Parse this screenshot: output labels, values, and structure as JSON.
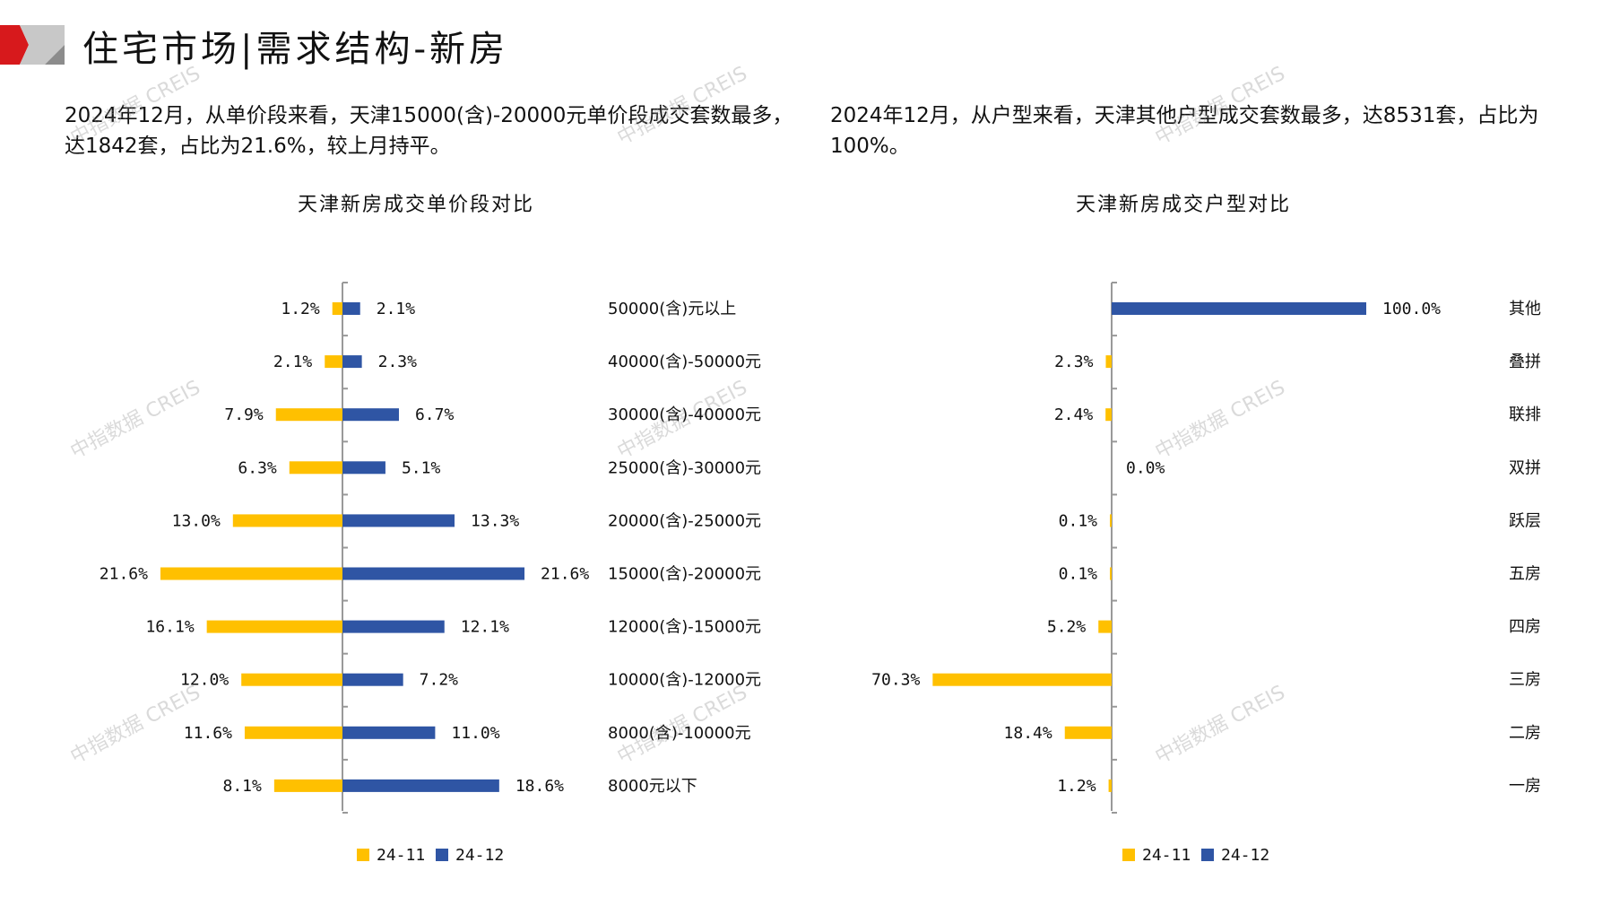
{
  "header": {
    "title": "住宅市场|需求结构-新房"
  },
  "left_text": "2024年12月，从单价段来看，天津15000(含)-20000元单价段成交套数最多，达1842套，占比为21.6%，较上月持平。",
  "right_text": "2024年12月，从户型来看，天津其他户型成交套数最多，达8531套，占比为100%。",
  "watermark": "中指数据 CREIS",
  "colors": {
    "prev": "#FFC000",
    "curr": "#2F55A4",
    "accent": "#D7191C"
  },
  "chart_data": [
    {
      "type": "bar",
      "orientation": "horizontal-butterfly",
      "title": "天津新房成交单价段对比",
      "categories": [
        "50000(含)元以上",
        "40000(含)-50000元",
        "30000(含)-40000元",
        "25000(含)-30000元",
        "20000(含)-25000元",
        "15000(含)-20000元",
        "12000(含)-15000元",
        "10000(含)-12000元",
        "8000(含)-10000元",
        "8000元以下"
      ],
      "series": [
        {
          "name": "24-11",
          "values": [
            1.2,
            2.1,
            7.9,
            6.3,
            13.0,
            21.6,
            16.1,
            12.0,
            11.6,
            8.1
          ],
          "labels": [
            "1.2%",
            "2.1%",
            "7.9%",
            "6.3%",
            "13.0%",
            "21.6%",
            "16.1%",
            "12.0%",
            "11.6%",
            "8.1%"
          ]
        },
        {
          "name": "24-12",
          "values": [
            2.1,
            2.3,
            6.7,
            5.1,
            13.3,
            21.6,
            12.1,
            7.2,
            11.0,
            18.6
          ],
          "labels": [
            "2.1%",
            "2.3%",
            "6.7%",
            "5.1%",
            "13.3%",
            "21.6%",
            "12.1%",
            "7.2%",
            "11.0%",
            "18.6%"
          ]
        }
      ],
      "legend": "bottom",
      "unit": "%"
    },
    {
      "type": "bar",
      "orientation": "horizontal-butterfly",
      "title": "天津新房成交户型对比",
      "categories": [
        "其他",
        "叠拼",
        "联排",
        "双拼",
        "跃层",
        "五房",
        "四房",
        "三房",
        "二房",
        "一房"
      ],
      "series": [
        {
          "name": "24-11",
          "values": [
            null,
            2.3,
            2.4,
            null,
            0.1,
            0.1,
            5.2,
            70.3,
            18.4,
            1.2
          ],
          "labels": [
            null,
            "2.3%",
            "2.4%",
            null,
            "0.1%",
            "0.1%",
            "5.2%",
            "70.3%",
            "18.4%",
            "1.2%"
          ]
        },
        {
          "name": "24-12",
          "values": [
            100.0,
            null,
            null,
            0.0,
            null,
            null,
            null,
            null,
            null,
            null
          ],
          "labels": [
            "100.0%",
            null,
            null,
            "0.0%",
            null,
            null,
            null,
            null,
            null,
            null
          ]
        }
      ],
      "legend": "bottom",
      "unit": "%"
    }
  ]
}
